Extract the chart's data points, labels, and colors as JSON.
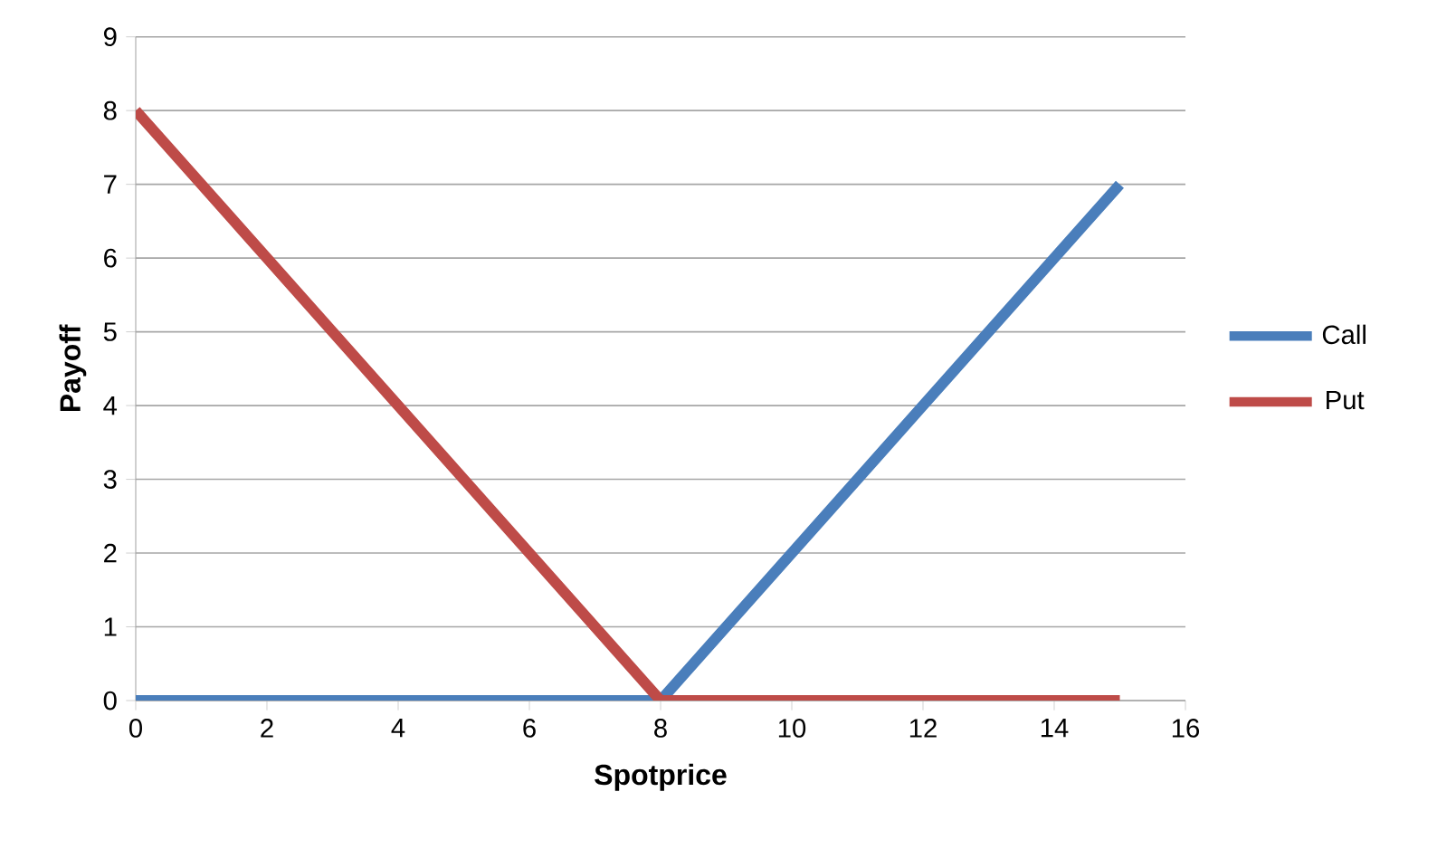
{
  "chart_data": {
    "type": "line",
    "xlabel": "Spotprice",
    "ylabel": "Payoff",
    "series": [
      {
        "name": "Call",
        "color": "#4a7ebb",
        "x": [
          0,
          8,
          15
        ],
        "values": [
          0,
          0,
          7
        ]
      },
      {
        "name": "Put",
        "color": "#be4b48",
        "x": [
          0,
          8,
          15
        ],
        "values": [
          8,
          0,
          0
        ]
      }
    ],
    "xlim": [
      0,
      16
    ],
    "ylim": [
      0,
      9
    ],
    "xticks": [
      0,
      2,
      4,
      6,
      8,
      10,
      12,
      14,
      16
    ],
    "yticks": [
      0,
      1,
      2,
      3,
      4,
      5,
      6,
      7,
      8,
      9
    ],
    "grid": "y",
    "legend": "right",
    "marker": "none",
    "line_style": "solid"
  }
}
